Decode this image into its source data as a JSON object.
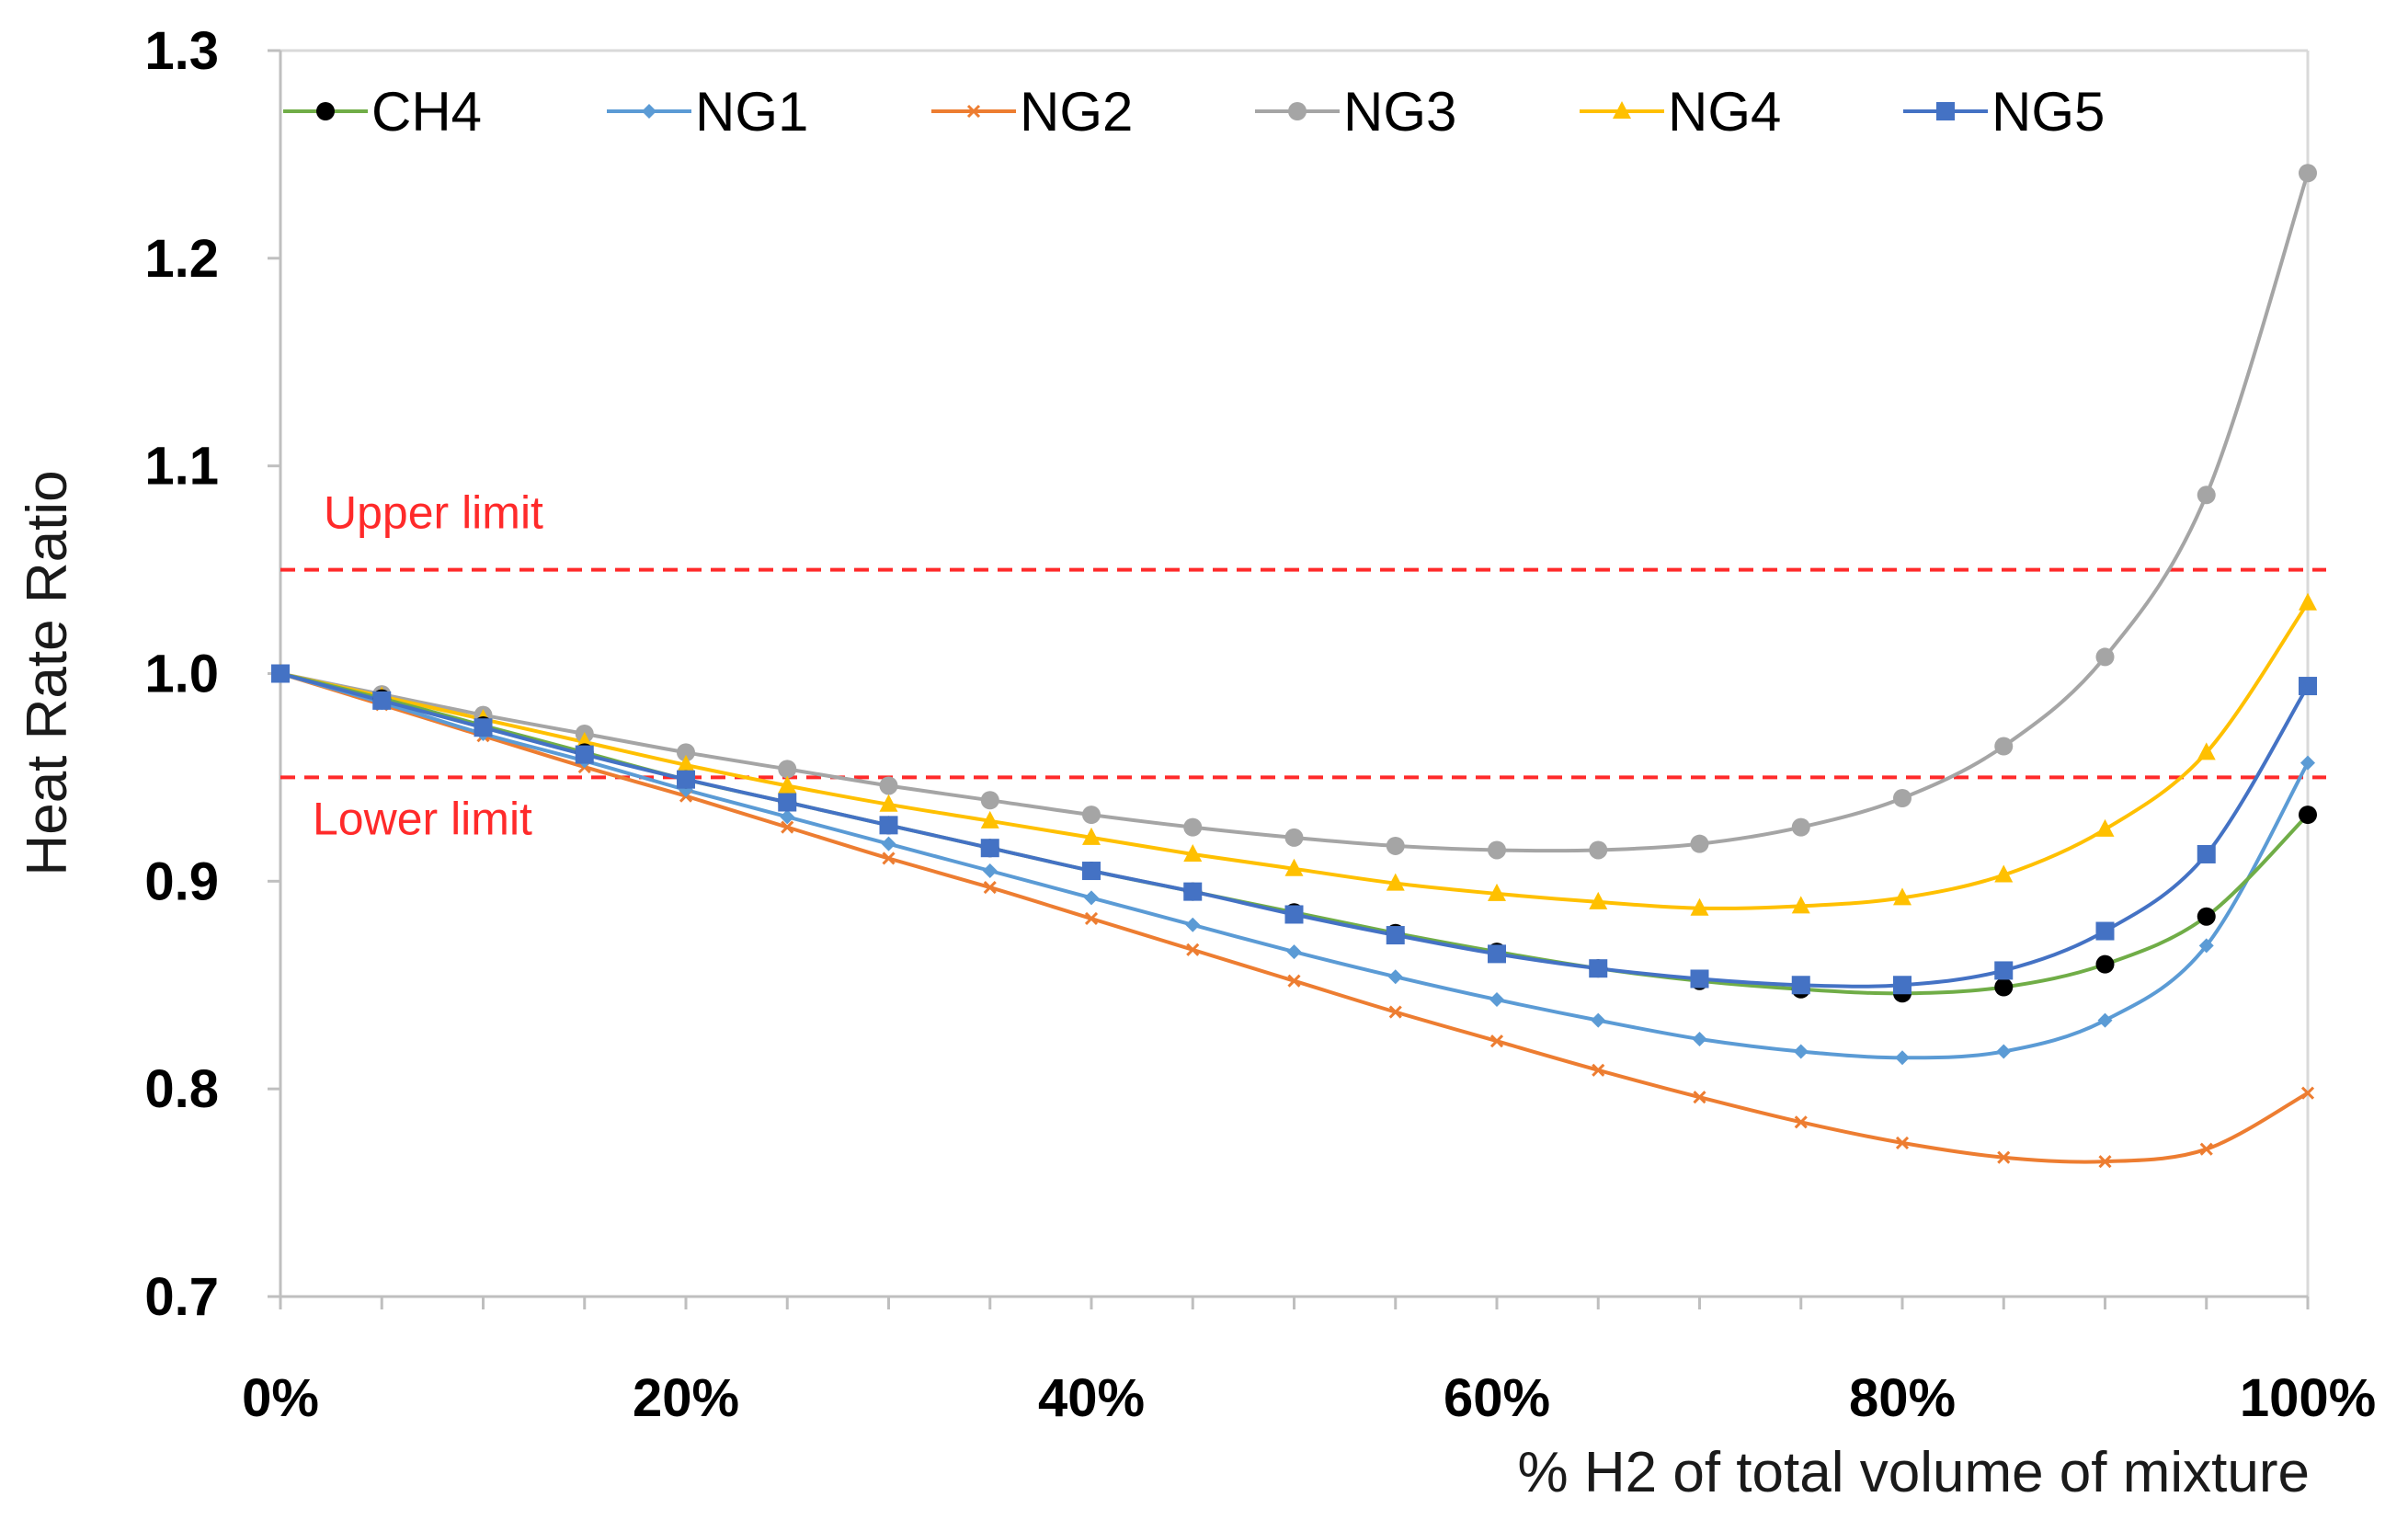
{
  "chart_data": {
    "type": "line",
    "title": "",
    "xlabel": "% H2 of total volume of mixture",
    "ylabel": "Heat Rate Ratio",
    "x": [
      0,
      5,
      10,
      15,
      20,
      25,
      30,
      35,
      40,
      45,
      50,
      55,
      60,
      65,
      70,
      75,
      80,
      85,
      90,
      95,
      100
    ],
    "xlim": [
      0,
      100
    ],
    "ylim": [
      0.7,
      1.3
    ],
    "xticks": [
      0,
      20,
      40,
      60,
      80,
      100
    ],
    "xtick_labels": [
      "0%",
      "20%",
      "40%",
      "60%",
      "80%",
      "100%"
    ],
    "yticks": [
      0.7,
      0.8,
      0.9,
      1.0,
      1.1,
      1.2,
      1.3
    ],
    "ytick_labels": [
      "0.7",
      "0.8",
      "0.9",
      "1.0",
      "1.1",
      "1.2",
      "1.3"
    ],
    "grid": "none",
    "legend_position": "top",
    "series": [
      {
        "name": "CH4",
        "color": "#70ad47",
        "marker_color": "#000000",
        "marker": "circle",
        "values": [
          1.0,
          0.988,
          0.975,
          0.962,
          0.949,
          0.938,
          0.927,
          0.916,
          0.905,
          0.895,
          0.885,
          0.875,
          0.866,
          0.858,
          0.852,
          0.848,
          0.846,
          0.849,
          0.86,
          0.883,
          0.932
        ]
      },
      {
        "name": "NG1",
        "color": "#5b9bd5",
        "marker_color": "#5b9bd5",
        "marker": "diamond",
        "values": [
          1.0,
          0.986,
          0.971,
          0.958,
          0.944,
          0.931,
          0.918,
          0.905,
          0.892,
          0.879,
          0.866,
          0.854,
          0.843,
          0.833,
          0.824,
          0.818,
          0.815,
          0.818,
          0.833,
          0.869,
          0.957
        ]
      },
      {
        "name": "NG2",
        "color": "#ed7d31",
        "marker_color": "#ed7d31",
        "marker": "x",
        "values": [
          1.0,
          0.985,
          0.97,
          0.955,
          0.941,
          0.926,
          0.911,
          0.897,
          0.882,
          0.867,
          0.852,
          0.837,
          0.823,
          0.809,
          0.796,
          0.784,
          0.774,
          0.767,
          0.765,
          0.771,
          0.798
        ]
      },
      {
        "name": "NG3",
        "color": "#a5a5a5",
        "marker_color": "#a5a5a5",
        "marker": "circle",
        "values": [
          1.0,
          0.99,
          0.98,
          0.971,
          0.962,
          0.954,
          0.946,
          0.939,
          0.932,
          0.926,
          0.921,
          0.917,
          0.915,
          0.915,
          0.918,
          0.926,
          0.94,
          0.965,
          1.008,
          1.086,
          1.241
        ]
      },
      {
        "name": "NG4",
        "color": "#ffc000",
        "marker_color": "#ffc000",
        "marker": "triangle",
        "values": [
          1.0,
          0.989,
          0.978,
          0.967,
          0.956,
          0.946,
          0.937,
          0.929,
          0.921,
          0.913,
          0.906,
          0.899,
          0.894,
          0.89,
          0.887,
          0.888,
          0.892,
          0.903,
          0.925,
          0.962,
          1.034
        ]
      },
      {
        "name": "NG5",
        "color": "#4472c4",
        "marker_color": "#4472c4",
        "marker": "square",
        "values": [
          1.0,
          0.987,
          0.974,
          0.961,
          0.949,
          0.938,
          0.927,
          0.916,
          0.905,
          0.895,
          0.884,
          0.874,
          0.865,
          0.858,
          0.853,
          0.85,
          0.85,
          0.857,
          0.876,
          0.913,
          0.994
        ]
      }
    ],
    "reference_lines": [
      {
        "name": "Upper limit",
        "value": 1.05,
        "color": "#ff2a2a"
      },
      {
        "name": "Lower limit",
        "value": 0.95,
        "color": "#ff2a2a"
      }
    ]
  }
}
